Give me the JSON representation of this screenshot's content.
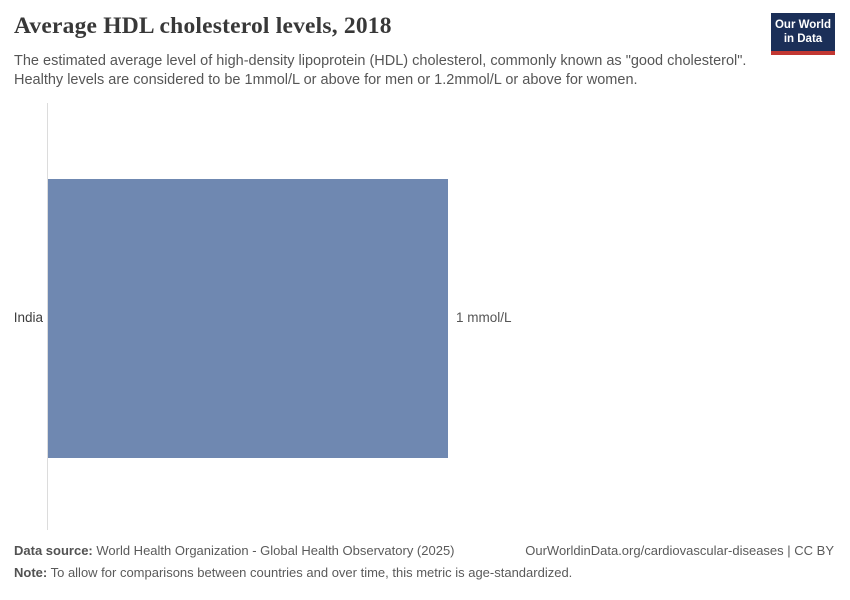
{
  "header": {
    "title": "Average HDL cholesterol levels, 2018",
    "subtitle": "The estimated average level of high-density lipoprotein (HDL) cholesterol, commonly known as \"good cholesterol\". Healthy levels are considered to be 1mmol/L or above for men or 1.2mmol/L or above for women."
  },
  "logo": {
    "line1": "Our World",
    "line2": "in Data",
    "bg_color": "#1b2f58",
    "stripe_color": "#c23732"
  },
  "chart_data": {
    "type": "bar",
    "orientation": "horizontal",
    "title": "Average HDL cholesterol levels, 2018",
    "year": "2018",
    "categories": [
      "India"
    ],
    "values": [
      1
    ],
    "unit": "mmol/L",
    "value_labels": [
      "1 mmol/L"
    ],
    "xlabel": "",
    "ylabel": "",
    "xlim": [
      0,
      1.12
    ],
    "grid": false,
    "legend": "none",
    "bar_color": "#6f88b1",
    "axis_line_color": "#dcdcdc"
  },
  "footer": {
    "datasource_label": "Data source:",
    "datasource_text": " World Health Organization - Global Health Observatory (2025)",
    "link_text": "OurWorldinData.org/cardiovascular-diseases | CC BY",
    "note_label": "Note:",
    "note_text": " To allow for comparisons between countries and over time, this metric is age-standardized."
  }
}
